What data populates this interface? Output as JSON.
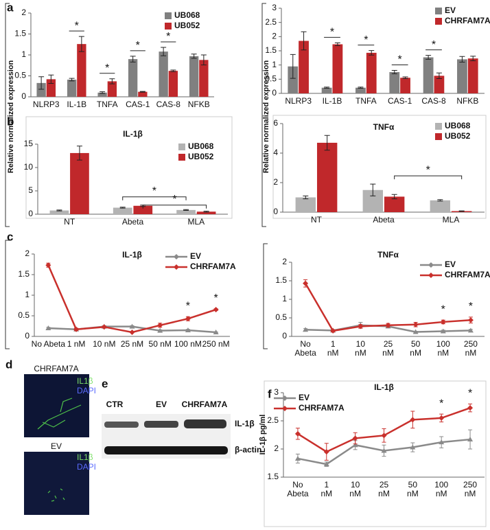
{
  "panel_labels": [
    "a",
    "b",
    "c",
    "d",
    "e",
    "f"
  ],
  "image_d": {
    "top": {
      "title": "CHRFAM7A",
      "channels": [
        "IL1β",
        "DAPI"
      ]
    },
    "bottom": {
      "title": "EV",
      "channels": [
        "IL1β",
        "DAPI"
      ]
    }
  },
  "blot_e": {
    "lanes": [
      "CTR",
      "EV",
      "CHRFAM7A"
    ],
    "rows": [
      "IL-1β",
      "β-actin"
    ]
  },
  "chart_data": [
    {
      "type": "bar",
      "categories": [
        "NLRP3",
        "IL-1B",
        "TNFA",
        "CAS-1",
        "CAS-8",
        "NFKB"
      ],
      "series": [
        {
          "name": "UB068",
          "color": "#808080",
          "values": [
            0.33,
            0.41,
            0.1,
            0.9,
            1.08,
            0.97
          ],
          "errors": [
            0.15,
            0.03,
            0.02,
            0.07,
            0.1,
            0.05
          ]
        },
        {
          "name": "UB052",
          "color": "#c0282b",
          "values": [
            0.42,
            1.26,
            0.37,
            0.12,
            0.62,
            0.88
          ],
          "errors": [
            0.1,
            0.18,
            0.06,
            0.01,
            0.02,
            0.12
          ]
        }
      ],
      "significance": [
        null,
        "*",
        "*",
        "*",
        "*",
        null
      ],
      "ylim": [
        0,
        2
      ],
      "yticks": [
        0,
        0.5,
        1,
        1.5,
        2
      ],
      "legend": "upper right"
    },
    {
      "type": "bar",
      "categories": [
        "NLRP3",
        "IL-1B",
        "TNFA",
        "CAS-1",
        "CAS-8",
        "NFKB"
      ],
      "series": [
        {
          "name": "EV",
          "color": "#808080",
          "values": [
            0.95,
            0.2,
            0.2,
            0.75,
            1.27,
            1.2
          ],
          "errors": [
            0.42,
            0.02,
            0.02,
            0.06,
            0.07,
            0.1
          ]
        },
        {
          "name": "CHRFAM7A",
          "color": "#c0282b",
          "values": [
            1.85,
            1.73,
            1.43,
            0.55,
            0.62,
            1.23
          ],
          "errors": [
            0.32,
            0.05,
            0.08,
            0.03,
            0.1,
            0.08
          ]
        }
      ],
      "significance": [
        null,
        "*",
        "*",
        "*",
        "*",
        null
      ],
      "ylim": [
        0,
        3
      ],
      "yticks": [
        0,
        0.5,
        1,
        1.5,
        2,
        2.5,
        3
      ],
      "legend": "upper right"
    },
    {
      "type": "bar",
      "title": "IL-1β",
      "ylabel": "Relative normalized expression",
      "categories": [
        "NT",
        "Abeta",
        "MLA"
      ],
      "series": [
        {
          "name": "UB068",
          "color": "#b3b3b3",
          "values": [
            0.8,
            1.4,
            0.9
          ],
          "errors": [
            0.1,
            0.1,
            0.1
          ]
        },
        {
          "name": "UB052",
          "color": "#c0282b",
          "values": [
            13.1,
            1.8,
            0.55
          ],
          "errors": [
            1.5,
            0.15,
            0.1
          ]
        }
      ],
      "annotations": [
        "*",
        "*"
      ],
      "ylim": [
        0,
        15
      ],
      "yticks": [
        0,
        5,
        10,
        15
      ],
      "legend": "upper right"
    },
    {
      "type": "bar",
      "title": "TNFα",
      "ylabel": "Relative normalized expression",
      "categories": [
        "NT",
        "Abeta",
        "MLA"
      ],
      "series": [
        {
          "name": "UB068",
          "color": "#b3b3b3",
          "values": [
            1.0,
            1.5,
            0.8
          ],
          "errors": [
            0.1,
            0.4,
            0.05
          ]
        },
        {
          "name": "UB052",
          "color": "#c0282b",
          "values": [
            4.7,
            1.05,
            0.07
          ],
          "errors": [
            0.5,
            0.15,
            0.02
          ]
        }
      ],
      "annotations": [
        "*"
      ],
      "ylim": [
        0,
        6
      ],
      "yticks": [
        0,
        2,
        4,
        6
      ],
      "legend": "upper right"
    },
    {
      "type": "line",
      "title": "IL-1β",
      "categories": [
        "No Abeta",
        "1 nM",
        "10 nM",
        "25 nM",
        "50 nM",
        "100 nM",
        "250 nM"
      ],
      "series": [
        {
          "name": "EV",
          "color": "#8a8a8a",
          "marker": "triangle",
          "values": [
            0.2,
            0.17,
            0.24,
            0.24,
            0.14,
            0.15,
            0.1
          ],
          "errors": [
            0.02,
            0.02,
            0.02,
            0.02,
            0.02,
            0.02,
            0.01
          ]
        },
        {
          "name": "CHRFAM7A",
          "color": "#c9302c",
          "marker": "diamond",
          "values": [
            1.73,
            0.17,
            0.23,
            0.1,
            0.27,
            0.43,
            0.65
          ],
          "errors": [
            0.05,
            0.03,
            0.02,
            0.01,
            0.05,
            0.05,
            0.02
          ]
        }
      ],
      "significance": [
        null,
        null,
        null,
        null,
        null,
        "*",
        "*"
      ],
      "ylim": [
        0,
        2
      ],
      "yticks": [
        0,
        0.5,
        1,
        1.5,
        2
      ],
      "legend": "upper right"
    },
    {
      "type": "line",
      "title": "TNFα",
      "categories": [
        "No Abeta",
        "1 nM",
        "10 nM",
        "25 nM",
        "50 nM",
        "100 nM",
        "250 nM"
      ],
      "series": [
        {
          "name": "EV",
          "color": "#8a8a8a",
          "marker": "triangle",
          "values": [
            0.18,
            0.16,
            0.3,
            0.27,
            0.12,
            0.14,
            0.16
          ],
          "errors": [
            0.03,
            0.02,
            0.08,
            0.03,
            0.02,
            0.03,
            0.03
          ]
        },
        {
          "name": "CHRFAM7A",
          "color": "#c9302c",
          "marker": "diamond",
          "values": [
            1.43,
            0.15,
            0.27,
            0.3,
            0.32,
            0.39,
            0.44
          ],
          "errors": [
            0.1,
            0.03,
            0.05,
            0.05,
            0.06,
            0.05,
            0.08
          ]
        }
      ],
      "significance": [
        null,
        null,
        null,
        null,
        null,
        "*",
        "*"
      ],
      "ylim": [
        0,
        2
      ],
      "yticks": [
        0,
        0.5,
        1,
        1.5,
        2
      ],
      "legend": "upper right"
    },
    {
      "type": "line",
      "title": "IL-1β",
      "ylabel": "IL-1β pg/ml",
      "categories": [
        "No Abeta",
        "1 nM",
        "10 nM",
        "25 nM",
        "50 nM",
        "100 nM",
        "250 nM"
      ],
      "series": [
        {
          "name": "EV",
          "color": "#8a8a8a",
          "marker": "triangle",
          "values": [
            1.83,
            1.73,
            2.07,
            1.97,
            2.03,
            2.12,
            2.17
          ],
          "errors": [
            0.08,
            0.04,
            0.08,
            0.1,
            0.08,
            0.1,
            0.17
          ]
        },
        {
          "name": "CHRFAM7A",
          "color": "#c9302c",
          "marker": "diamond",
          "values": [
            2.27,
            1.95,
            2.19,
            2.24,
            2.52,
            2.55,
            2.73
          ],
          "errors": [
            0.1,
            0.15,
            0.1,
            0.12,
            0.15,
            0.07,
            0.07
          ]
        }
      ],
      "significance": [
        null,
        null,
        null,
        null,
        null,
        "*",
        "*"
      ],
      "ylim": [
        1.5,
        3
      ],
      "yticks": [
        1.5,
        2,
        2.5,
        3
      ],
      "legend": "upper left"
    }
  ]
}
